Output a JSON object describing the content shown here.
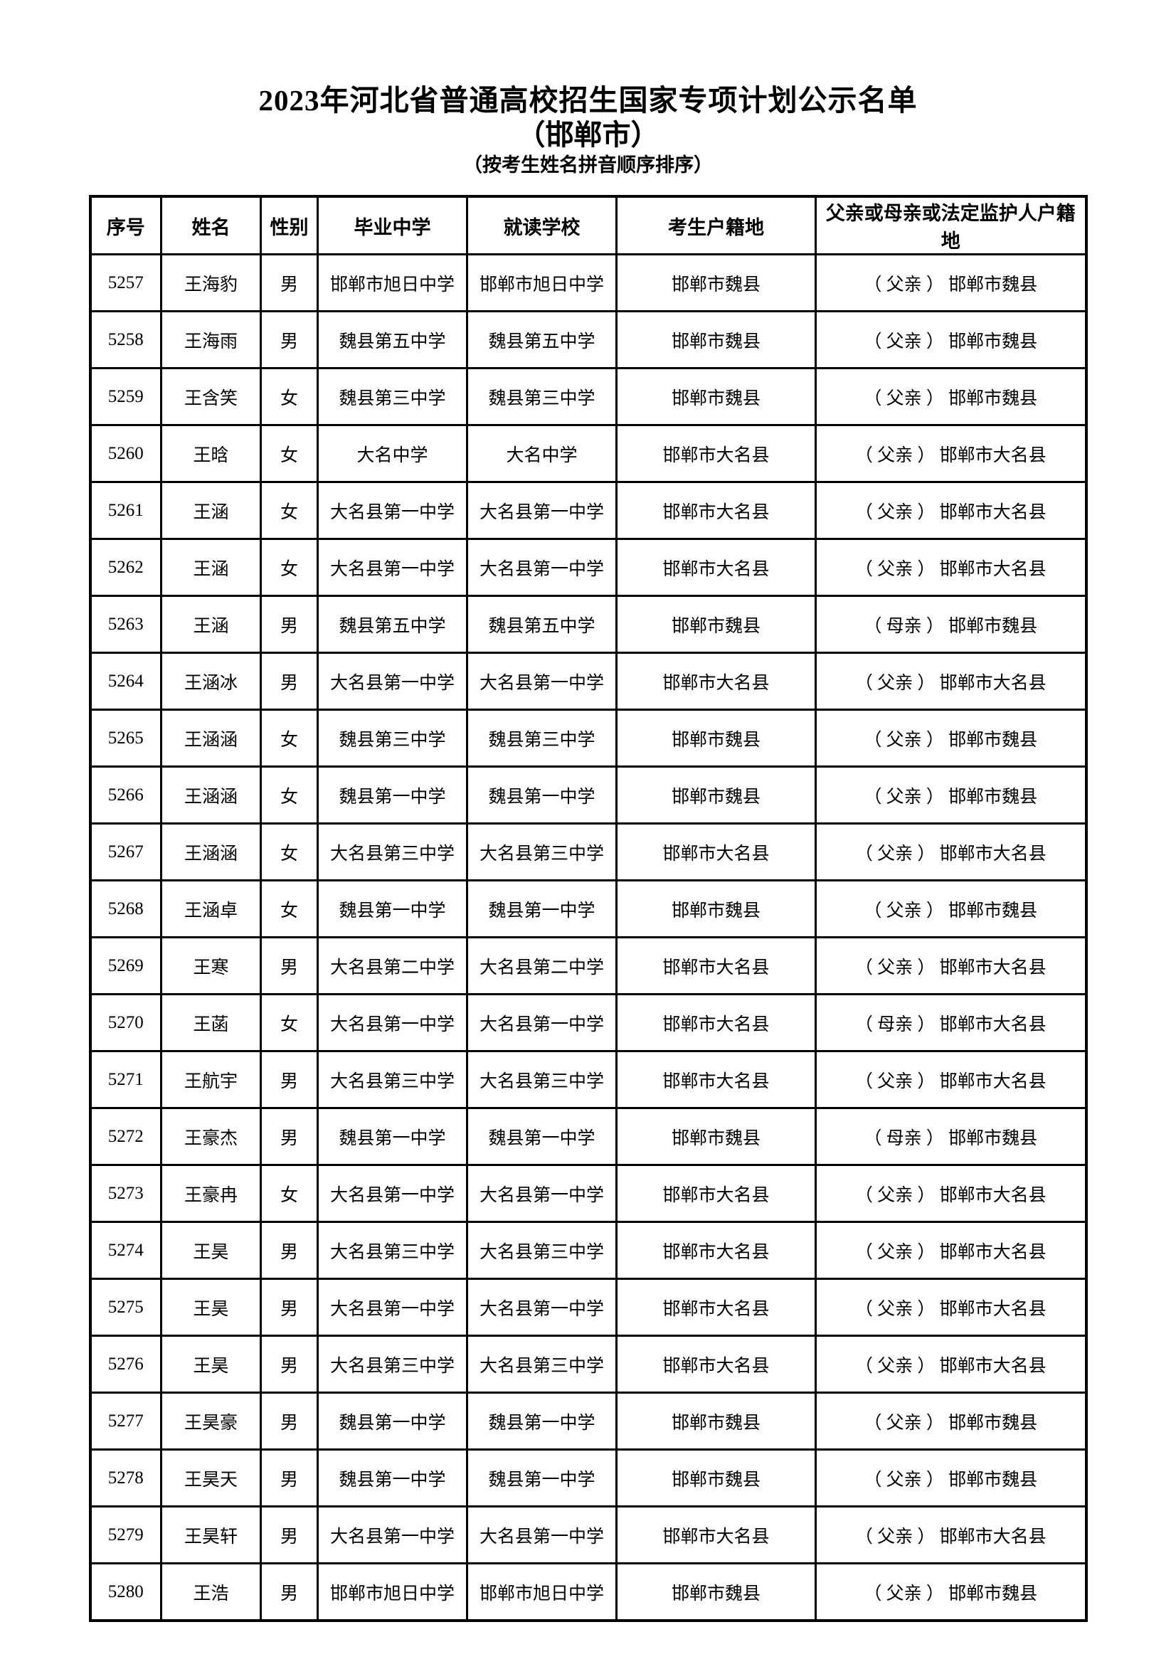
{
  "page": {
    "title": "2023年河北省普通高校招生国家专项计划公示名单",
    "subtitle": "（邯郸市）",
    "sort_note": "（按考生姓名拼音顺序排序）"
  },
  "table": {
    "headers": [
      "序号",
      "姓名",
      "性别",
      "毕业中学",
      "就读学校",
      "考生户籍地",
      "父亲或母亲或法定监护人户籍地"
    ],
    "rows": [
      [
        "5257",
        "王海豹",
        "男",
        "邯郸市旭日中学",
        "邯郸市旭日中学",
        "邯郸市魏县",
        "（ 父亲 ） 邯郸市魏县"
      ],
      [
        "5258",
        "王海雨",
        "男",
        "魏县第五中学",
        "魏县第五中学",
        "邯郸市魏县",
        "（ 父亲 ） 邯郸市魏县"
      ],
      [
        "5259",
        "王含笑",
        "女",
        "魏县第三中学",
        "魏县第三中学",
        "邯郸市魏县",
        "（ 父亲 ） 邯郸市魏县"
      ],
      [
        "5260",
        "王晗",
        "女",
        "大名中学",
        "大名中学",
        "邯郸市大名县",
        "（ 父亲 ） 邯郸市大名县"
      ],
      [
        "5261",
        "王涵",
        "女",
        "大名县第一中学",
        "大名县第一中学",
        "邯郸市大名县",
        "（ 父亲 ） 邯郸市大名县"
      ],
      [
        "5262",
        "王涵",
        "女",
        "大名县第一中学",
        "大名县第一中学",
        "邯郸市大名县",
        "（ 父亲 ） 邯郸市大名县"
      ],
      [
        "5263",
        "王涵",
        "男",
        "魏县第五中学",
        "魏县第五中学",
        "邯郸市魏县",
        "（ 母亲 ） 邯郸市魏县"
      ],
      [
        "5264",
        "王涵冰",
        "男",
        "大名县第一中学",
        "大名县第一中学",
        "邯郸市大名县",
        "（ 父亲 ） 邯郸市大名县"
      ],
      [
        "5265",
        "王涵涵",
        "女",
        "魏县第三中学",
        "魏县第三中学",
        "邯郸市魏县",
        "（ 父亲 ） 邯郸市魏县"
      ],
      [
        "5266",
        "王涵涵",
        "女",
        "魏县第一中学",
        "魏县第一中学",
        "邯郸市魏县",
        "（ 父亲 ） 邯郸市魏县"
      ],
      [
        "5267",
        "王涵涵",
        "女",
        "大名县第三中学",
        "大名县第三中学",
        "邯郸市大名县",
        "（ 父亲 ） 邯郸市大名县"
      ],
      [
        "5268",
        "王涵卓",
        "女",
        "魏县第一中学",
        "魏县第一中学",
        "邯郸市魏县",
        "（ 父亲 ） 邯郸市魏县"
      ],
      [
        "5269",
        "王寒",
        "男",
        "大名县第二中学",
        "大名县第二中学",
        "邯郸市大名县",
        "（ 父亲 ） 邯郸市大名县"
      ],
      [
        "5270",
        "王菡",
        "女",
        "大名县第一中学",
        "大名县第一中学",
        "邯郸市大名县",
        "（ 母亲 ） 邯郸市大名县"
      ],
      [
        "5271",
        "王航宇",
        "男",
        "大名县第三中学",
        "大名县第三中学",
        "邯郸市大名县",
        "（ 父亲 ） 邯郸市大名县"
      ],
      [
        "5272",
        "王豪杰",
        "男",
        "魏县第一中学",
        "魏县第一中学",
        "邯郸市魏县",
        "（ 母亲 ） 邯郸市魏县"
      ],
      [
        "5273",
        "王豪冉",
        "女",
        "大名县第一中学",
        "大名县第一中学",
        "邯郸市大名县",
        "（ 父亲 ） 邯郸市大名县"
      ],
      [
        "5274",
        "王昊",
        "男",
        "大名县第三中学",
        "大名县第三中学",
        "邯郸市大名县",
        "（ 父亲 ） 邯郸市大名县"
      ],
      [
        "5275",
        "王昊",
        "男",
        "大名县第一中学",
        "大名县第一中学",
        "邯郸市大名县",
        "（ 父亲 ） 邯郸市大名县"
      ],
      [
        "5276",
        "王昊",
        "男",
        "大名县第三中学",
        "大名县第三中学",
        "邯郸市大名县",
        "（ 父亲 ） 邯郸市大名县"
      ],
      [
        "5277",
        "王昊豪",
        "男",
        "魏县第一中学",
        "魏县第一中学",
        "邯郸市魏县",
        "（ 父亲 ） 邯郸市魏县"
      ],
      [
        "5278",
        "王昊天",
        "男",
        "魏县第一中学",
        "魏县第一中学",
        "邯郸市魏县",
        "（ 父亲 ） 邯郸市魏县"
      ],
      [
        "5279",
        "王昊轩",
        "男",
        "大名县第一中学",
        "大名县第一中学",
        "邯郸市大名县",
        "（ 父亲 ） 邯郸市大名县"
      ],
      [
        "5280",
        "王浩",
        "男",
        "邯郸市旭日中学",
        "邯郸市旭日中学",
        "邯郸市魏县",
        "（ 父亲 ） 邯郸市魏县"
      ]
    ]
  }
}
